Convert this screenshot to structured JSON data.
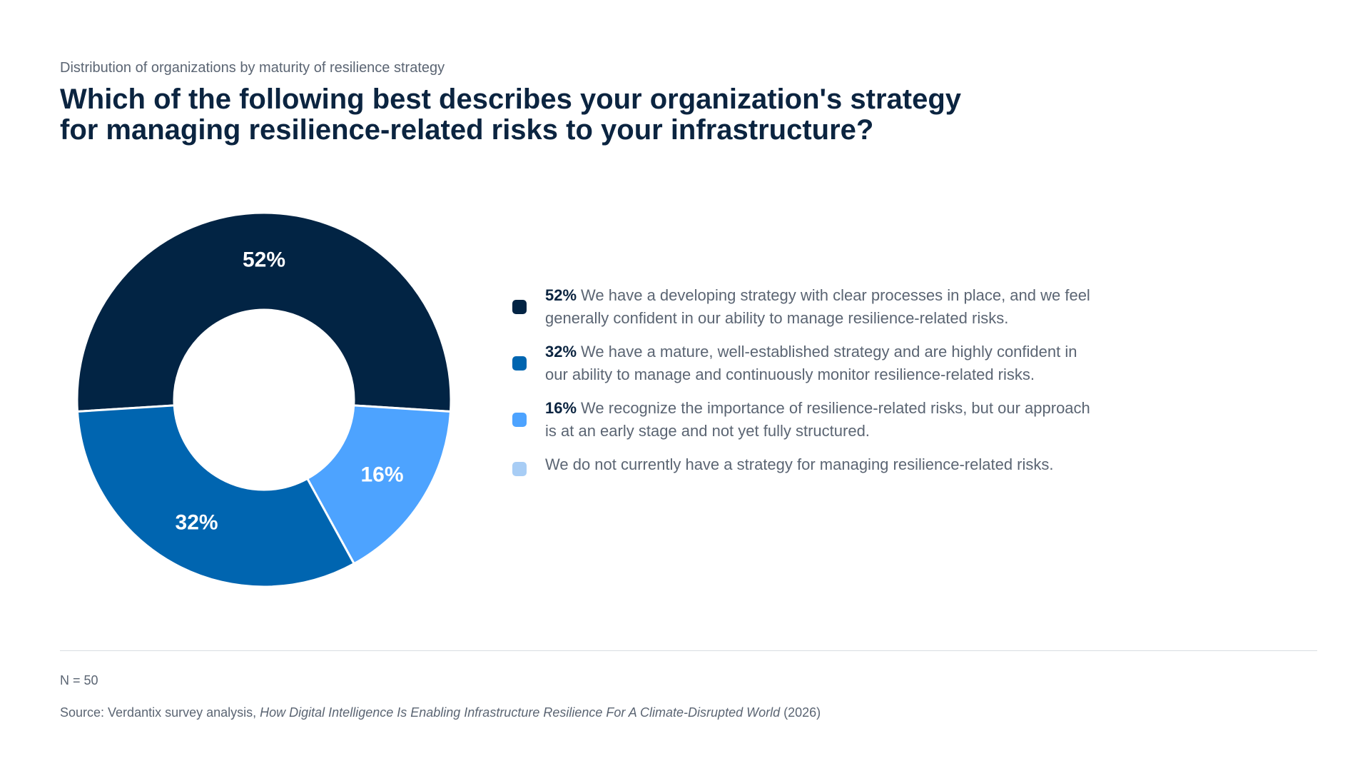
{
  "header": {
    "subtitle": "Distribution of organizations by maturity of resilience strategy",
    "title_line1": "Which of the following best describes your organization's strategy",
    "title_line2": "for managing resilience-related risks to your infrastructure?"
  },
  "chart_data": {
    "type": "pie",
    "variant": "donut",
    "slices": [
      {
        "value": 52,
        "label": "52%",
        "color": "#022444",
        "legend_pct": "52%",
        "legend_text": "We have a developing strategy with clear processes in place, and we feel generally confident in our ability to manage resilience-related risks."
      },
      {
        "value": 16,
        "label": "16%",
        "color": "#4da3ff",
        "legend_pct": "16%",
        "legend_text": "We recognize the importance of resilience-related risks, but our approach is at an early stage and not yet fully structured."
      },
      {
        "value": 32,
        "label": "32%",
        "color": "#0065b0",
        "legend_pct": "32%",
        "legend_text": "We have a mature, well-established strategy and are highly confident in our ability to manage and continuously monitor resilience-related risks."
      },
      {
        "value": 0,
        "label": "",
        "color": "#a8cdf5",
        "legend_pct": "",
        "legend_text": "We do not currently have a strategy for managing resilience-related risks."
      }
    ]
  },
  "legend": {
    "items": [
      {
        "pct": "52%",
        "text": "We have a developing strategy with clear processes in place, and we feel generally confident in our ability to manage resilience-related risks.",
        "color": "#022444"
      },
      {
        "pct": "32%",
        "text": "We have a mature, well-established strategy and are highly confident in our ability to manage and continuously monitor resilience-related risks.",
        "color": "#0065b0"
      },
      {
        "pct": "16%",
        "text": "We recognize the importance of resilience-related risks, but our approach is at an early stage and not yet fully structured.",
        "color": "#4da3ff"
      },
      {
        "pct": "",
        "text": "We do not currently have a strategy for managing resilience-related risks.",
        "color": "#a8cdf5"
      }
    ]
  },
  "footer": {
    "note": "N = 50",
    "source_prefix": "Source: Verdantix survey analysis, ",
    "source_title": "How Digital Intelligence Is Enabling Infrastructure Resilience For A Climate-Disrupted World",
    "source_suffix": " (2026)"
  }
}
